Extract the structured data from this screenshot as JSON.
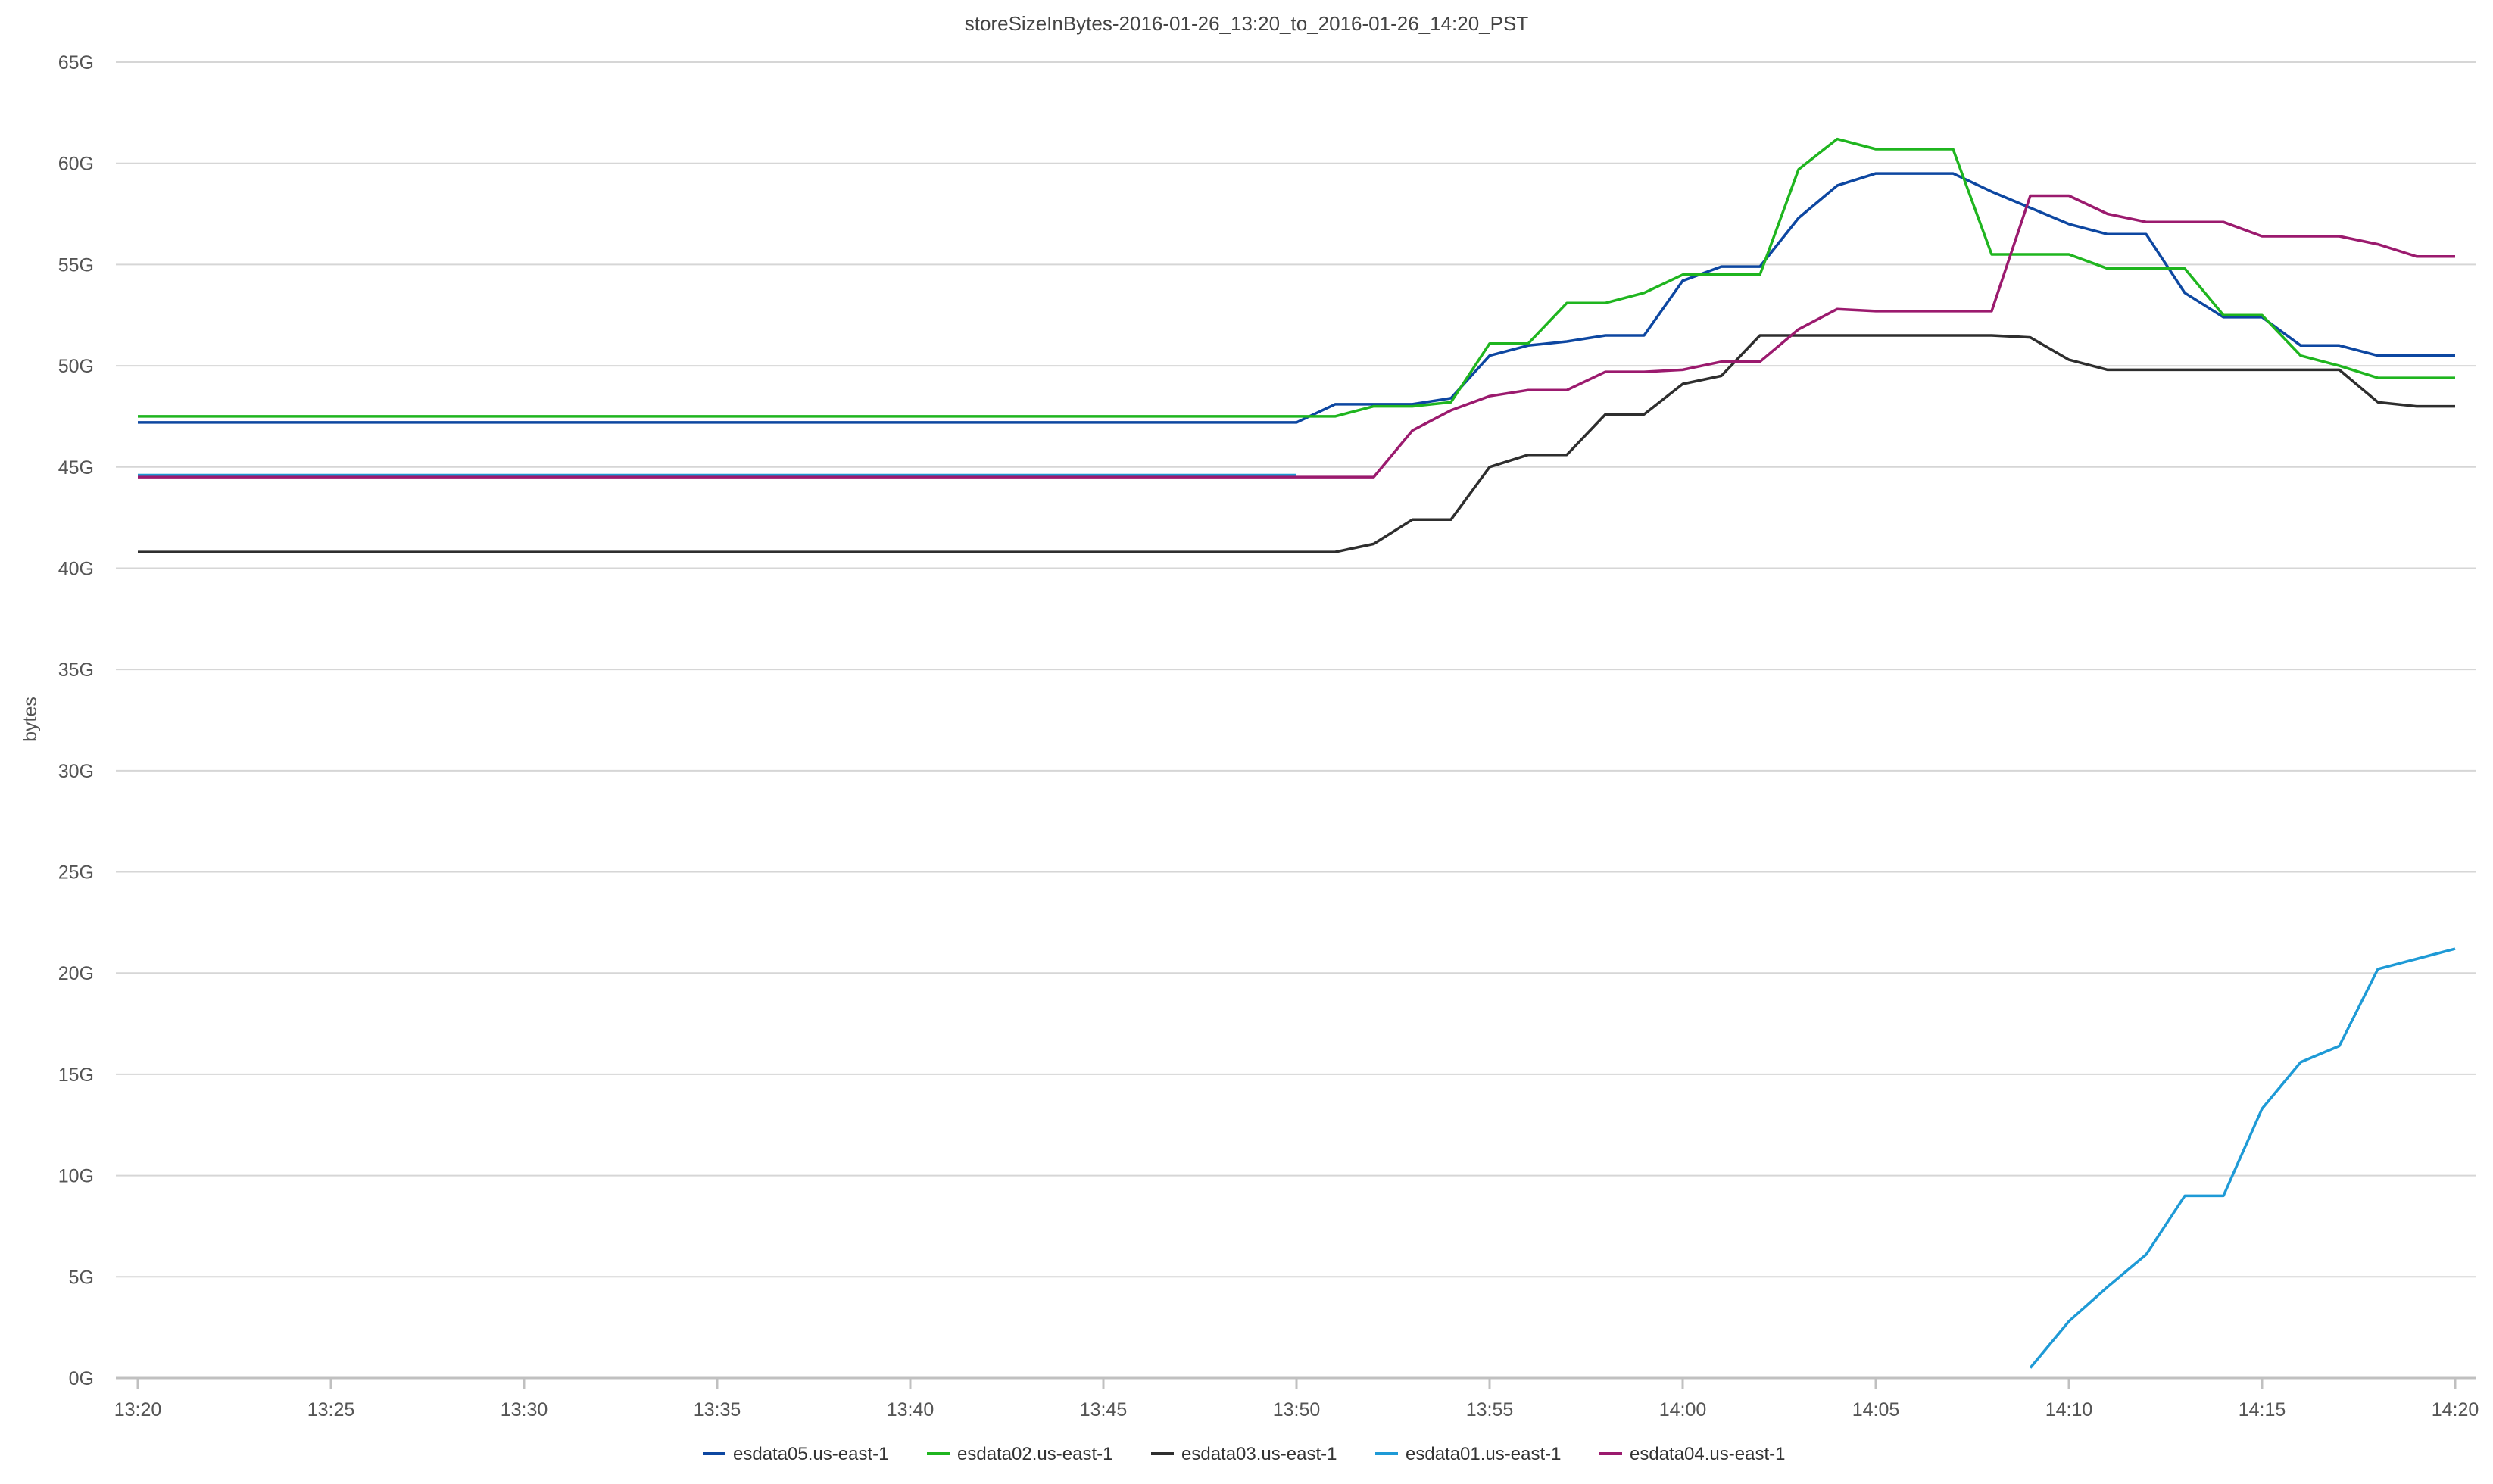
{
  "chart_data": {
    "type": "line",
    "title": "storeSizeInBytes-2016-01-26_13:20_to_2016-01-26_14:20_PST",
    "xlabel": "",
    "ylabel": "bytes",
    "ylim": [
      0,
      65
    ],
    "y_unit": "G",
    "y_ticks": [
      "0G",
      "5G",
      "10G",
      "15G",
      "20G",
      "25G",
      "30G",
      "35G",
      "40G",
      "45G",
      "50G",
      "55G",
      "60G",
      "65G"
    ],
    "x_ticks": [
      "13:20",
      "13:25",
      "13:30",
      "13:35",
      "13:40",
      "13:45",
      "13:50",
      "13:55",
      "14:00",
      "14:05",
      "14:10",
      "14:15",
      "14:20"
    ],
    "grid": true,
    "legend_position": "bottom-center",
    "series": [
      {
        "name": "esdata05.us-east-1",
        "color": "#0d47a1",
        "points": [
          [
            "13:20",
            47.2
          ],
          [
            "13:25",
            47.2
          ],
          [
            "13:30",
            47.2
          ],
          [
            "13:35",
            47.2
          ],
          [
            "13:40",
            47.2
          ],
          [
            "13:45",
            47.2
          ],
          [
            "13:50",
            47.2
          ],
          [
            "13:51",
            48.1
          ],
          [
            "13:52",
            48.1
          ],
          [
            "13:53",
            48.1
          ],
          [
            "13:54",
            48.4
          ],
          [
            "13:55",
            50.5
          ],
          [
            "13:56",
            51.0
          ],
          [
            "13:57",
            51.2
          ],
          [
            "13:58",
            51.5
          ],
          [
            "13:59",
            51.5
          ],
          [
            "14:00",
            54.2
          ],
          [
            "14:01",
            54.9
          ],
          [
            "14:02",
            54.9
          ],
          [
            "14:03",
            57.3
          ],
          [
            "14:04",
            58.9
          ],
          [
            "14:05",
            59.5
          ],
          [
            "14:06",
            59.5
          ],
          [
            "14:07",
            59.5
          ],
          [
            "14:08",
            58.6
          ],
          [
            "14:09",
            57.8
          ],
          [
            "14:10",
            57.0
          ],
          [
            "14:11",
            56.5
          ],
          [
            "14:12",
            56.5
          ],
          [
            "14:13",
            53.6
          ],
          [
            "14:14",
            52.4
          ],
          [
            "14:15",
            52.4
          ],
          [
            "14:16",
            51.0
          ],
          [
            "14:17",
            51.0
          ],
          [
            "14:18",
            50.5
          ],
          [
            "14:19",
            50.5
          ],
          [
            "14:20",
            50.5
          ]
        ]
      },
      {
        "name": "esdata02.us-east-1",
        "color": "#1fb51f",
        "points": [
          [
            "13:20",
            47.5
          ],
          [
            "13:25",
            47.5
          ],
          [
            "13:30",
            47.5
          ],
          [
            "13:35",
            47.5
          ],
          [
            "13:40",
            47.5
          ],
          [
            "13:45",
            47.5
          ],
          [
            "13:50",
            47.5
          ],
          [
            "13:51",
            47.5
          ],
          [
            "13:52",
            48.0
          ],
          [
            "13:53",
            48.0
          ],
          [
            "13:54",
            48.2
          ],
          [
            "13:55",
            51.1
          ],
          [
            "13:56",
            51.1
          ],
          [
            "13:57",
            53.1
          ],
          [
            "13:58",
            53.1
          ],
          [
            "13:59",
            53.6
          ],
          [
            "14:00",
            54.5
          ],
          [
            "14:01",
            54.5
          ],
          [
            "14:02",
            54.5
          ],
          [
            "14:03",
            59.7
          ],
          [
            "14:04",
            61.2
          ],
          [
            "14:05",
            60.7
          ],
          [
            "14:06",
            60.7
          ],
          [
            "14:07",
            60.7
          ],
          [
            "14:08",
            55.5
          ],
          [
            "14:09",
            55.5
          ],
          [
            "14:10",
            55.5
          ],
          [
            "14:11",
            54.8
          ],
          [
            "14:12",
            54.8
          ],
          [
            "14:13",
            54.8
          ],
          [
            "14:14",
            52.5
          ],
          [
            "14:15",
            52.5
          ],
          [
            "14:16",
            50.5
          ],
          [
            "14:17",
            50.0
          ],
          [
            "14:18",
            49.4
          ],
          [
            "14:19",
            49.4
          ],
          [
            "14:20",
            49.4
          ]
        ]
      },
      {
        "name": "esdata03.us-east-1",
        "color": "#2e2e2e",
        "points": [
          [
            "13:20",
            40.8
          ],
          [
            "13:25",
            40.8
          ],
          [
            "13:30",
            40.8
          ],
          [
            "13:35",
            40.8
          ],
          [
            "13:40",
            40.8
          ],
          [
            "13:45",
            40.8
          ],
          [
            "13:50",
            40.8
          ],
          [
            "13:51",
            40.8
          ],
          [
            "13:52",
            41.2
          ],
          [
            "13:53",
            42.4
          ],
          [
            "13:54",
            42.4
          ],
          [
            "13:55",
            45.0
          ],
          [
            "13:56",
            45.6
          ],
          [
            "13:57",
            45.6
          ],
          [
            "13:58",
            47.6
          ],
          [
            "13:59",
            47.6
          ],
          [
            "14:00",
            49.1
          ],
          [
            "14:01",
            49.5
          ],
          [
            "14:02",
            51.5
          ],
          [
            "14:03",
            51.5
          ],
          [
            "14:04",
            51.5
          ],
          [
            "14:05",
            51.5
          ],
          [
            "14:06",
            51.5
          ],
          [
            "14:07",
            51.5
          ],
          [
            "14:08",
            51.5
          ],
          [
            "14:09",
            51.4
          ],
          [
            "14:10",
            50.3
          ],
          [
            "14:11",
            49.8
          ],
          [
            "14:12",
            49.8
          ],
          [
            "14:13",
            49.8
          ],
          [
            "14:14",
            49.8
          ],
          [
            "14:15",
            49.8
          ],
          [
            "14:16",
            49.8
          ],
          [
            "14:17",
            49.8
          ],
          [
            "14:18",
            48.2
          ],
          [
            "14:19",
            48.0
          ],
          [
            "14:20",
            48.0
          ]
        ]
      },
      {
        "name": "esdata01.us-east-1",
        "color": "#1e9ad6",
        "points": [
          [
            "13:20",
            44.6
          ],
          [
            "13:25",
            44.6
          ],
          [
            "13:30",
            44.6
          ],
          [
            "13:35",
            44.6
          ],
          [
            "13:40",
            44.6
          ],
          [
            "13:45",
            44.6
          ],
          [
            "13:50",
            44.6
          ],
          null,
          [
            "14:09",
            0.5
          ],
          [
            "14:10",
            2.8
          ],
          [
            "14:11",
            4.5
          ],
          [
            "14:12",
            6.1
          ],
          [
            "14:13",
            9.0
          ],
          [
            "14:14",
            9.0
          ],
          [
            "14:15",
            13.3
          ],
          [
            "14:16",
            15.6
          ],
          [
            "14:17",
            16.4
          ],
          [
            "14:18",
            20.2
          ],
          [
            "14:19",
            20.7
          ],
          [
            "14:20",
            21.2
          ]
        ]
      },
      {
        "name": "esdata04.us-east-1",
        "color": "#9b1a6e",
        "points": [
          [
            "13:20",
            44.5
          ],
          [
            "13:25",
            44.5
          ],
          [
            "13:30",
            44.5
          ],
          [
            "13:35",
            44.5
          ],
          [
            "13:40",
            44.5
          ],
          [
            "13:45",
            44.5
          ],
          [
            "13:50",
            44.5
          ],
          [
            "13:51",
            44.5
          ],
          [
            "13:52",
            44.5
          ],
          [
            "13:53",
            46.8
          ],
          [
            "13:54",
            47.8
          ],
          [
            "13:55",
            48.5
          ],
          [
            "13:56",
            48.8
          ],
          [
            "13:57",
            48.8
          ],
          [
            "13:58",
            49.7
          ],
          [
            "13:59",
            49.7
          ],
          [
            "14:00",
            49.8
          ],
          [
            "14:01",
            50.2
          ],
          [
            "14:02",
            50.2
          ],
          [
            "14:03",
            51.8
          ],
          [
            "14:04",
            52.8
          ],
          [
            "14:05",
            52.7
          ],
          [
            "14:06",
            52.7
          ],
          [
            "14:07",
            52.7
          ],
          [
            "14:08",
            52.7
          ],
          [
            "14:09",
            58.4
          ],
          [
            "14:10",
            58.4
          ],
          [
            "14:11",
            57.5
          ],
          [
            "14:12",
            57.1
          ],
          [
            "14:13",
            57.1
          ],
          [
            "14:14",
            57.1
          ],
          [
            "14:15",
            56.4
          ],
          [
            "14:16",
            56.4
          ],
          [
            "14:17",
            56.4
          ],
          [
            "14:18",
            56.0
          ],
          [
            "14:19",
            55.4
          ],
          [
            "14:20",
            55.4
          ]
        ]
      }
    ]
  }
}
